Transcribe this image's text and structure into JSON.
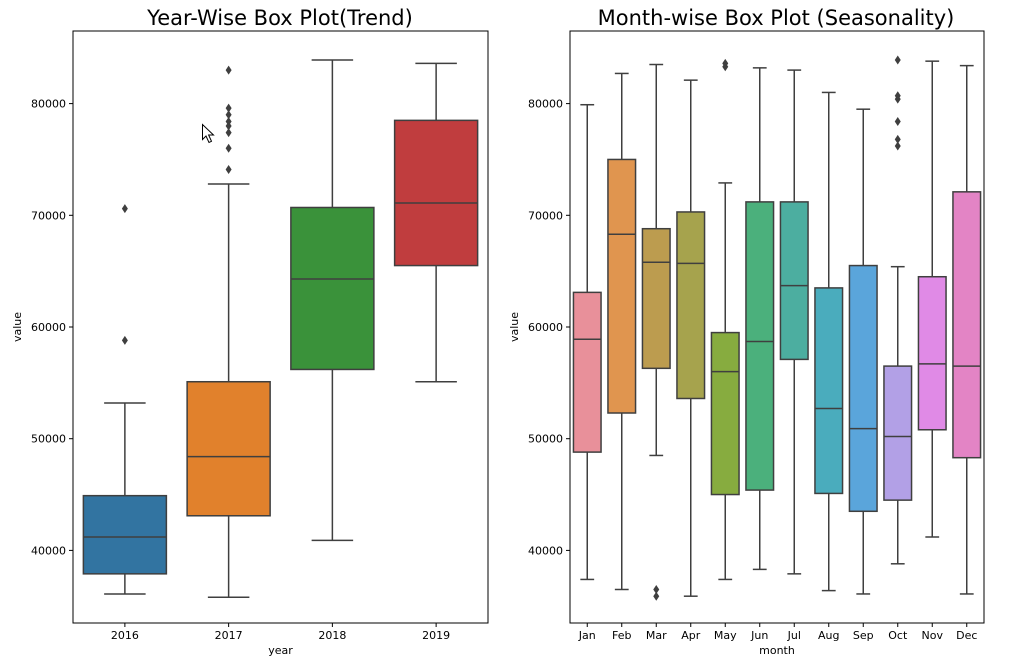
{
  "chart_data": [
    {
      "type": "box",
      "title": "Year-Wise Box Plot(Trend)",
      "xlabel": "year",
      "ylabel": "value",
      "ylim": [
        33500,
        86500
      ],
      "yticks": [
        40000,
        50000,
        60000,
        70000,
        80000
      ],
      "yticklabels": [
        "40000",
        "50000",
        "60000",
        "70000",
        "80000"
      ],
      "categories": [
        "2016",
        "2017",
        "2018",
        "2019"
      ],
      "colors": [
        "#3274a1",
        "#e1812c",
        "#3a923a",
        "#c03d3e"
      ],
      "boxes": [
        {
          "whislo": 36100,
          "q1": 37900,
          "med": 41200,
          "q3": 44900,
          "whishi": 53200,
          "fliers": [
            58800,
            70600
          ]
        },
        {
          "whislo": 35800,
          "q1": 43100,
          "med": 48400,
          "q3": 55100,
          "whishi": 72800,
          "fliers": [
            74100,
            76000,
            77400,
            78000,
            78400,
            79000,
            79600,
            83000
          ]
        },
        {
          "whislo": 40900,
          "q1": 56200,
          "med": 64300,
          "q3": 70700,
          "whishi": 83900,
          "fliers": []
        },
        {
          "whislo": 55100,
          "q1": 65500,
          "med": 71100,
          "q3": 78500,
          "whishi": 83600,
          "fliers": []
        }
      ]
    },
    {
      "type": "box",
      "title": "Month-wise Box Plot (Seasonality)",
      "xlabel": "month",
      "ylabel": "value",
      "ylim": [
        33500,
        86500
      ],
      "yticks": [
        40000,
        50000,
        60000,
        70000,
        80000
      ],
      "yticklabels": [
        "40000",
        "50000",
        "60000",
        "70000",
        "80000"
      ],
      "categories": [
        "Jan",
        "Feb",
        "Mar",
        "Apr",
        "May",
        "Jun",
        "Jul",
        "Aug",
        "Sep",
        "Oct",
        "Nov",
        "Dec"
      ],
      "colors": [
        "#e8909a",
        "#e0954f",
        "#bc9c4f",
        "#a6a34d",
        "#87ac3f",
        "#4bb07c",
        "#4caea0",
        "#4aacbd",
        "#5aa5db",
        "#b2a0e6",
        "#e08ae6",
        "#e384c5"
      ],
      "boxes": [
        {
          "whislo": 37400,
          "q1": 48800,
          "med": 58900,
          "q3": 63100,
          "whishi": 79900,
          "fliers": []
        },
        {
          "whislo": 36500,
          "q1": 52300,
          "med": 68300,
          "q3": 75000,
          "whishi": 82700,
          "fliers": []
        },
        {
          "whislo": 48500,
          "q1": 56300,
          "med": 65800,
          "q3": 68800,
          "whishi": 83500,
          "fliers": [
            35900,
            36500
          ]
        },
        {
          "whislo": 35900,
          "q1": 53600,
          "med": 65700,
          "q3": 70300,
          "whishi": 82100,
          "fliers": []
        },
        {
          "whislo": 37400,
          "q1": 45000,
          "med": 56000,
          "q3": 59500,
          "whishi": 72900,
          "fliers": [
            83300,
            83600
          ]
        },
        {
          "whislo": 38300,
          "q1": 45400,
          "med": 58700,
          "q3": 71200,
          "whishi": 83200,
          "fliers": []
        },
        {
          "whislo": 37900,
          "q1": 57100,
          "med": 63700,
          "q3": 71200,
          "whishi": 83000,
          "fliers": []
        },
        {
          "whislo": 36400,
          "q1": 45100,
          "med": 52700,
          "q3": 63500,
          "whishi": 81000,
          "fliers": []
        },
        {
          "whislo": 36100,
          "q1": 43500,
          "med": 50900,
          "q3": 65500,
          "whishi": 79500,
          "fliers": []
        },
        {
          "whislo": 38800,
          "q1": 44500,
          "med": 50200,
          "q3": 56500,
          "whishi": 65400,
          "fliers": [
            76200,
            76800,
            78400,
            80400,
            80700,
            83900
          ]
        },
        {
          "whislo": 41200,
          "q1": 50800,
          "med": 56700,
          "q3": 64500,
          "whishi": 83800,
          "fliers": []
        },
        {
          "whislo": 36100,
          "q1": 48300,
          "med": 56500,
          "q3": 72100,
          "whishi": 83400,
          "fliers": []
        }
      ]
    }
  ]
}
